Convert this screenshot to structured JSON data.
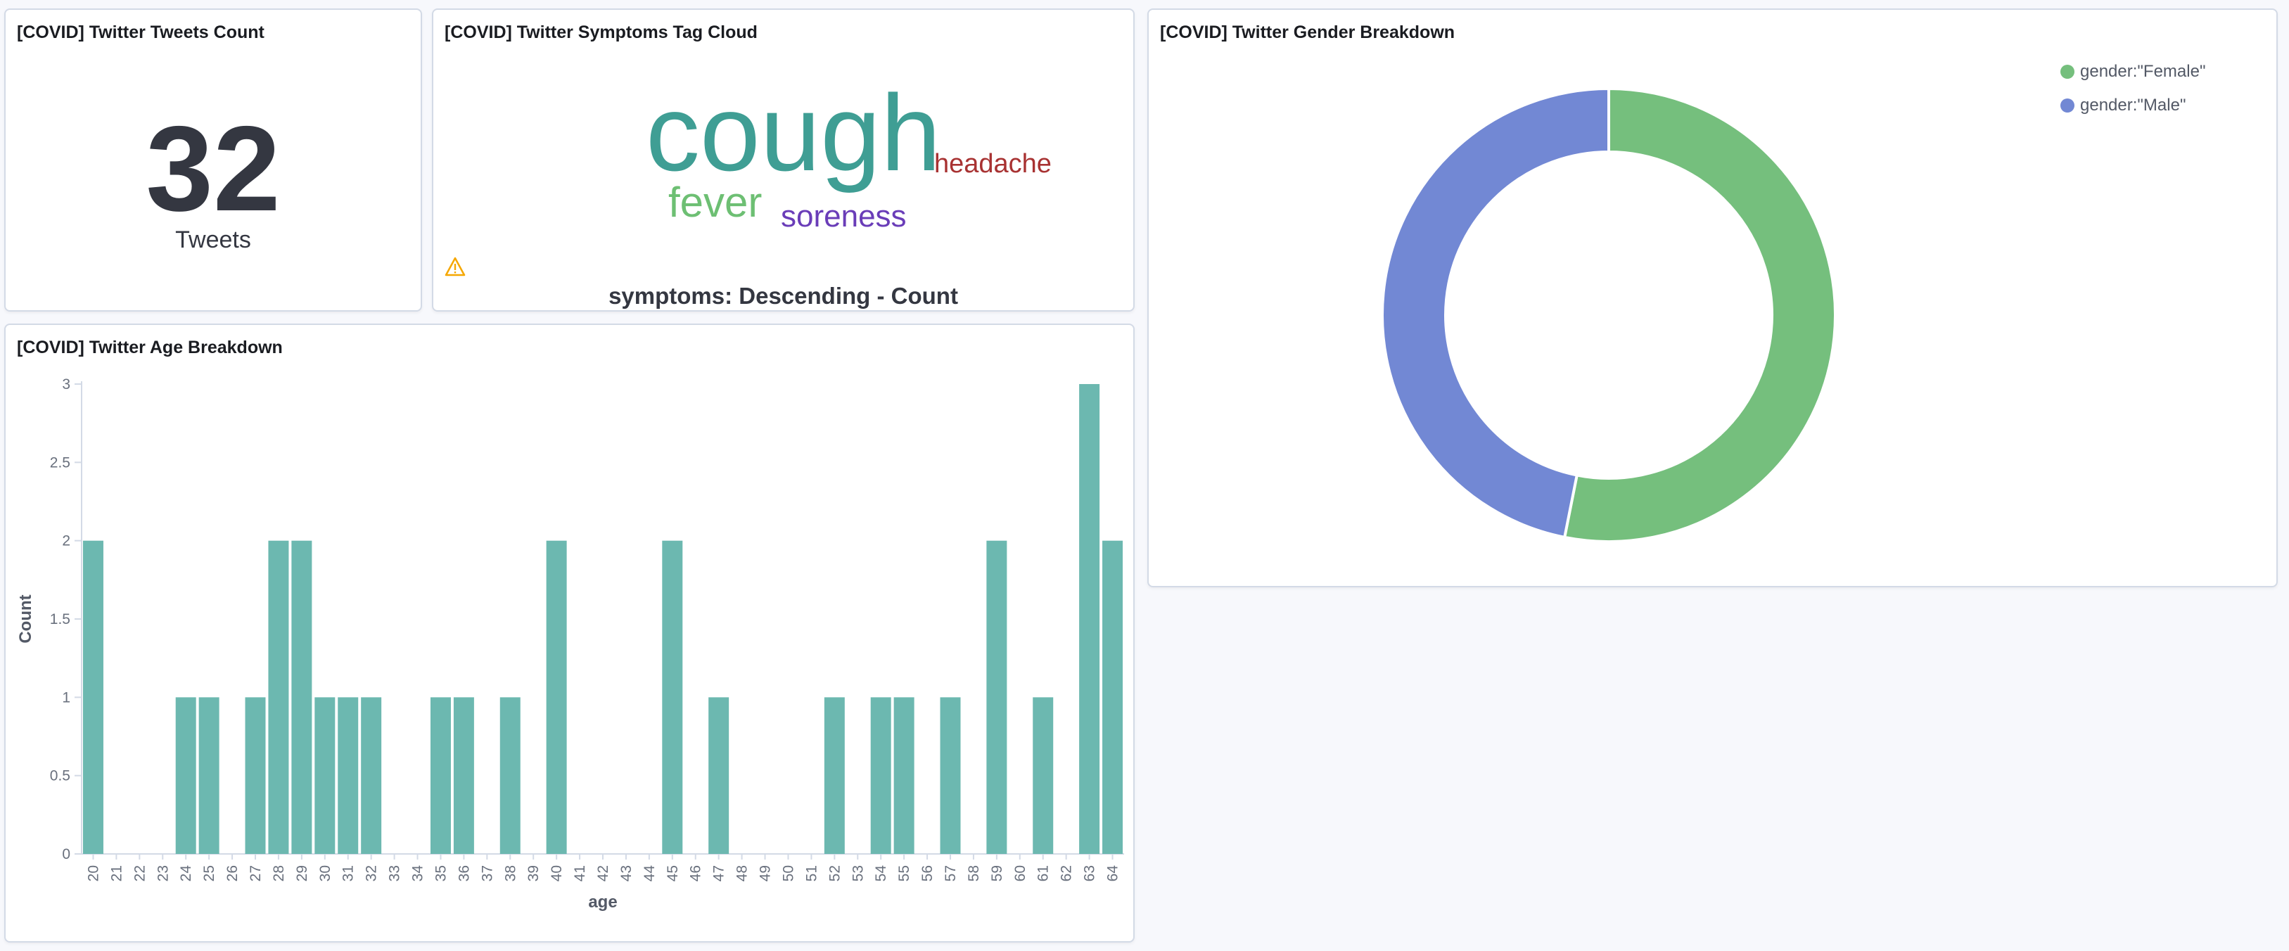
{
  "panels": {
    "tweets_count": {
      "title": "[COVID] Twitter Tweets Count",
      "value": "32",
      "label": "Tweets"
    },
    "symptoms_cloud": {
      "title": "[COVID] Twitter Symptoms Tag Cloud",
      "tags": [
        {
          "text": "cough",
          "color": "#3f9e94"
        },
        {
          "text": "headache",
          "color": "#a83232"
        },
        {
          "text": "fever",
          "color": "#6dbf73"
        },
        {
          "text": "soreness",
          "color": "#6a3db8"
        }
      ],
      "caption": "symptoms: Descending - Count",
      "warning_icon": "warning-icon"
    },
    "gender_breakdown": {
      "title": "[COVID] Twitter Gender Breakdown",
      "legend": [
        {
          "label": "gender:\"Female\"",
          "color": "#75bf7d"
        },
        {
          "label": "gender:\"Male\"",
          "color": "#7288d4"
        }
      ]
    },
    "age_breakdown": {
      "title": "[COVID] Twitter Age Breakdown"
    }
  },
  "chart_data": [
    {
      "type": "pie",
      "donut": true,
      "categories": [
        "gender:\"Female\"",
        "gender:\"Male\""
      ],
      "values": [
        17,
        15
      ],
      "colors": [
        "#75bf7d",
        "#7288d4"
      ],
      "legend_position": "top-right"
    },
    {
      "type": "bar",
      "xlabel": "age",
      "ylabel": "Count",
      "ylim": [
        0,
        3
      ],
      "yticks": [
        "0",
        "0.5",
        "1",
        "1.5",
        "2",
        "2.5",
        "3"
      ],
      "bar_color": "#6cb8b0",
      "categories": [
        "20",
        "21",
        "22",
        "23",
        "24",
        "25",
        "26",
        "27",
        "28",
        "29",
        "30",
        "31",
        "32",
        "33",
        "34",
        "35",
        "36",
        "37",
        "38",
        "39",
        "40",
        "41",
        "42",
        "43",
        "44",
        "45",
        "46",
        "47",
        "48",
        "49",
        "50",
        "51",
        "52",
        "53",
        "54",
        "55",
        "56",
        "57",
        "58",
        "59",
        "60",
        "61",
        "62",
        "63",
        "64"
      ],
      "values": [
        2,
        0,
        0,
        0,
        1,
        1,
        0,
        1,
        2,
        2,
        1,
        1,
        1,
        0,
        0,
        1,
        1,
        0,
        1,
        0,
        2,
        0,
        0,
        0,
        0,
        2,
        0,
        1,
        0,
        0,
        0,
        0,
        1,
        0,
        1,
        1,
        0,
        1,
        0,
        2,
        0,
        1,
        0,
        3,
        2
      ]
    }
  ]
}
